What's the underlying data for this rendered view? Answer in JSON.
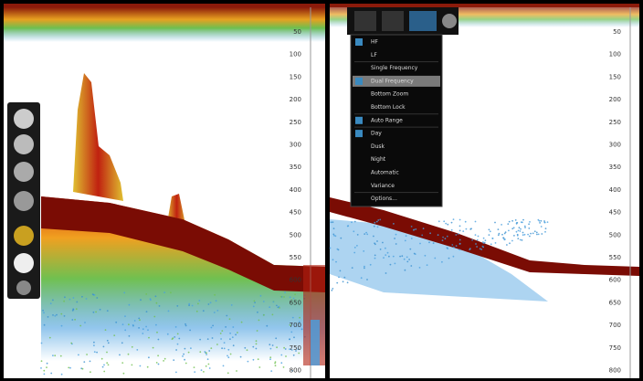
{
  "depth_scale_left": {
    "labels": [
      "50",
      "100",
      "150",
      "200",
      "250",
      "300",
      "350",
      "400",
      "450",
      "500",
      "550",
      "600",
      "650",
      "700",
      "750",
      "800"
    ]
  },
  "depth_scale_right": {
    "labels": [
      "50",
      "100",
      "150",
      "200",
      "250",
      "300",
      "350",
      "400",
      "450",
      "500",
      "550",
      "600",
      "650",
      "700",
      "750",
      "800"
    ]
  },
  "menu": {
    "items": [
      {
        "label": "HF",
        "checked": true
      },
      {
        "label": "LF",
        "checked": false
      },
      {
        "label": "Single Frequency",
        "checked": false
      },
      {
        "label": "Dual Frequency",
        "checked": true,
        "highlighted": true
      },
      {
        "label": "Bottom Zoom",
        "checked": false
      },
      {
        "label": "Bottom Lock",
        "checked": false
      },
      {
        "label": "Auto Range",
        "checked": true
      },
      {
        "label": "Day",
        "checked": true
      },
      {
        "label": "Dusk",
        "checked": false
      },
      {
        "label": "Night",
        "checked": false
      },
      {
        "label": "Automatic",
        "checked": false
      },
      {
        "label": "Variance",
        "checked": false,
        "disabled": true
      },
      {
        "label": "Options...",
        "checked": false
      }
    ]
  }
}
